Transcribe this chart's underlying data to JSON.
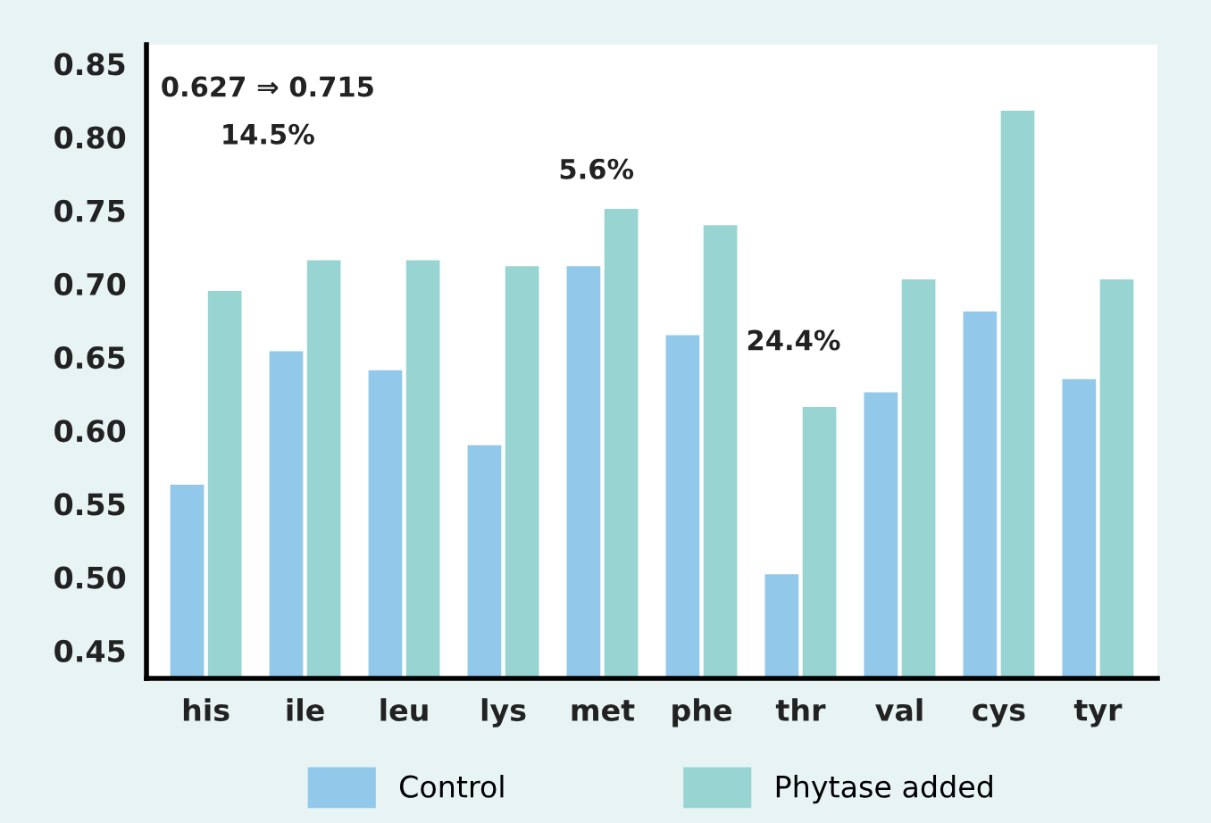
{
  "chart_data": {
    "type": "bar",
    "categories": [
      "his",
      "ile",
      "leu",
      "lys",
      "met",
      "phe",
      "thr",
      "val",
      "cys",
      "tyr"
    ],
    "series": [
      {
        "name": "Control",
        "color": "#92c8ea",
        "values": [
          0.563,
          0.654,
          0.641,
          0.59,
          0.712,
          0.665,
          0.502,
          0.626,
          0.681,
          0.635
        ]
      },
      {
        "name": "Phytase added",
        "color": "#98d5d2",
        "values": [
          0.695,
          0.716,
          0.716,
          0.712,
          0.751,
          0.74,
          0.616,
          0.703,
          0.818,
          0.703
        ]
      }
    ],
    "ylim": [
      0.431,
      0.863
    ],
    "yticks": [
      {
        "value": 0.45,
        "label": "0.45"
      },
      {
        "value": 0.5,
        "label": "0.50"
      },
      {
        "value": 0.55,
        "label": "0.55"
      },
      {
        "value": 0.6,
        "label": "0.60"
      },
      {
        "value": 0.65,
        "label": "0.65"
      },
      {
        "value": 0.7,
        "label": "0.70"
      },
      {
        "value": 0.75,
        "label": "0.75"
      },
      {
        "value": 0.8,
        "label": "0.80"
      },
      {
        "value": 0.85,
        "label": "0.85"
      }
    ],
    "annotations": [
      "0.627 ⇒ 0.715",
      "14.5%",
      "5.6%",
      "24.4%"
    ],
    "grid": false,
    "legend": "bottom"
  }
}
